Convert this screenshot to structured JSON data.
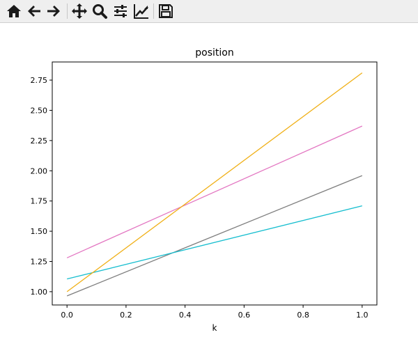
{
  "toolbar": {
    "buttons": [
      {
        "icon": "home-icon"
      },
      {
        "icon": "back-arrow-icon"
      },
      {
        "icon": "forward-arrow-icon"
      },
      {
        "icon": "pan-icon"
      },
      {
        "icon": "zoom-icon"
      },
      {
        "icon": "configure-subplots-icon"
      },
      {
        "icon": "edit-axis-icon"
      },
      {
        "icon": "save-icon"
      }
    ]
  },
  "chart_data": {
    "type": "line",
    "title": "position",
    "xlabel": "k",
    "ylabel": "",
    "xlim": [
      -0.05,
      1.05
    ],
    "ylim": [
      0.89,
      2.9
    ],
    "x_ticks": [
      0.0,
      0.2,
      0.4,
      0.6,
      0.8,
      1.0
    ],
    "x_tick_labels": [
      "0.0",
      "0.2",
      "0.4",
      "0.6",
      "0.8",
      "1.0"
    ],
    "y_ticks": [
      1.0,
      1.25,
      1.5,
      1.75,
      2.0,
      2.25,
      2.5,
      2.75
    ],
    "y_tick_labels": [
      "1.00",
      "1.25",
      "1.50",
      "1.75",
      "2.00",
      "2.25",
      "2.50",
      "2.75"
    ],
    "grid": false,
    "series": [
      {
        "color": "#e377c2",
        "x": [
          0.0,
          1.0
        ],
        "y": [
          1.28,
          2.37
        ]
      },
      {
        "color": "#7f7f7f",
        "x": [
          0.0,
          1.0
        ],
        "y": [
          0.965,
          1.96
        ]
      },
      {
        "color": "#17becf",
        "x": [
          0.0,
          1.0
        ],
        "y": [
          1.105,
          1.71
        ]
      },
      {
        "color": "#f0b017",
        "x": [
          0.0,
          1.0
        ],
        "y": [
          1.0,
          2.81
        ]
      }
    ]
  }
}
